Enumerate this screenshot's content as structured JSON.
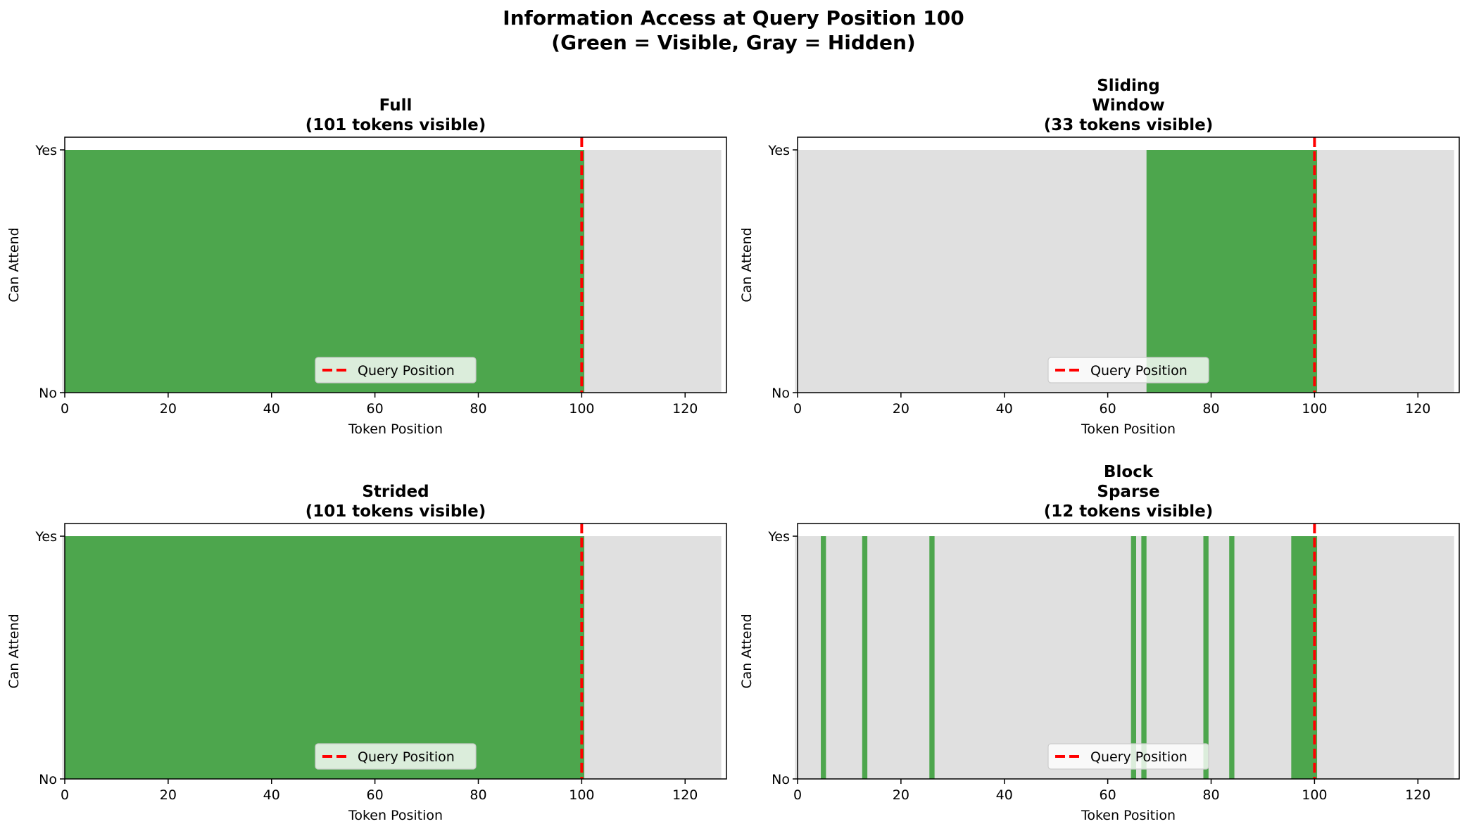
{
  "figure_title": {
    "line1": "Information Access at Query Position 100",
    "line2": "(Green = Visible, Gray = Hidden)"
  },
  "colors": {
    "visible": "#4da64d",
    "hidden": "#e0e0e0",
    "query_line": "#ff0000"
  },
  "chart_data": [
    {
      "type": "area",
      "title": [
        "Full",
        "(101 tokens visible)"
      ],
      "xlabel": "Token Position",
      "ylabel": "Can Attend",
      "xlim": [
        0,
        128
      ],
      "xticks": [
        0,
        20,
        40,
        60,
        80,
        100,
        120
      ],
      "yticks": [
        "No",
        "Yes"
      ],
      "query_position": 100,
      "visible_ranges": [
        [
          0,
          100
        ]
      ],
      "legend": {
        "label": "Query Position",
        "placement": "lower center"
      }
    },
    {
      "type": "area",
      "title": [
        "Sliding",
        "Window",
        "(33 tokens visible)"
      ],
      "xlabel": "Token Position",
      "ylabel": "Can Attend",
      "xlim": [
        0,
        128
      ],
      "xticks": [
        0,
        20,
        40,
        60,
        80,
        100,
        120
      ],
      "yticks": [
        "No",
        "Yes"
      ],
      "query_position": 100,
      "visible_ranges": [
        [
          68,
          100
        ]
      ],
      "legend": {
        "label": "Query Position",
        "placement": "lower center"
      }
    },
    {
      "type": "area",
      "title": [
        "Strided",
        "(101 tokens visible)"
      ],
      "xlabel": "Token Position",
      "ylabel": "Can Attend",
      "xlim": [
        0,
        128
      ],
      "xticks": [
        0,
        20,
        40,
        60,
        80,
        100,
        120
      ],
      "yticks": [
        "No",
        "Yes"
      ],
      "query_position": 100,
      "visible_ranges": [
        [
          0,
          100
        ]
      ],
      "legend": {
        "label": "Query Position",
        "placement": "lower center"
      }
    },
    {
      "type": "area",
      "title": [
        "Block",
        "Sparse",
        "(12 tokens visible)"
      ],
      "xlabel": "Token Position",
      "ylabel": "Can Attend",
      "xlim": [
        0,
        128
      ],
      "xticks": [
        0,
        20,
        40,
        60,
        80,
        100,
        120
      ],
      "yticks": [
        "No",
        "Yes"
      ],
      "query_position": 100,
      "visible_ranges": [
        [
          5,
          5
        ],
        [
          13,
          13
        ],
        [
          26,
          26
        ],
        [
          65,
          65
        ],
        [
          67,
          67
        ],
        [
          79,
          79
        ],
        [
          84,
          84
        ],
        [
          96,
          100
        ]
      ],
      "legend": {
        "label": "Query Position",
        "placement": "lower center"
      }
    }
  ]
}
